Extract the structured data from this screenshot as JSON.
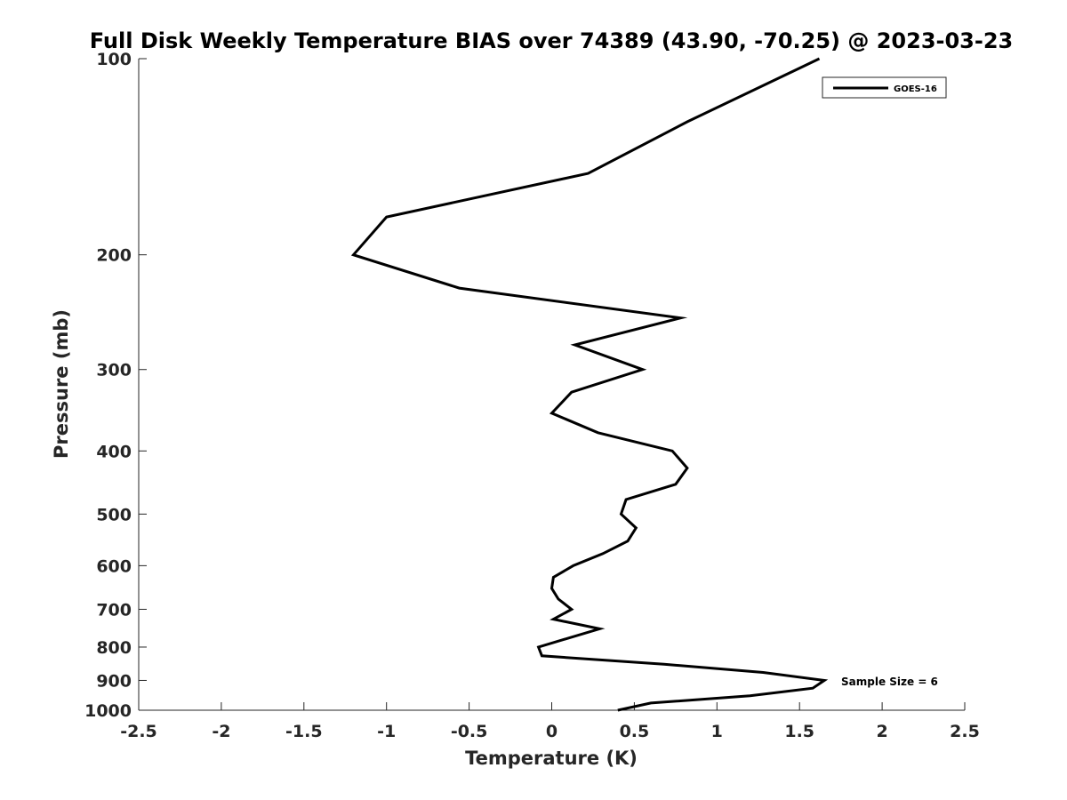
{
  "chart_data": {
    "type": "line",
    "title": "Full Disk Weekly Temperature BIAS over 74389 (43.90, -70.25) @ 2023-03-23",
    "xlabel": "Temperature (K)",
    "ylabel": "Pressure (mb)",
    "xlim": [
      -2.5,
      2.5
    ],
    "ylim": [
      100,
      1000
    ],
    "y_scale": "log",
    "y_reversed": true,
    "x_ticks": [
      -2.5,
      -2,
      -1.5,
      -1,
      -0.5,
      0,
      0.5,
      1,
      1.5,
      2,
      2.5
    ],
    "x_tick_labels": [
      "-2.5",
      "-2",
      "-1.5",
      "-1",
      "-0.5",
      "0",
      "0.5",
      "1",
      "1.5",
      "2",
      "2.5"
    ],
    "y_ticks": [
      100,
      200,
      300,
      400,
      500,
      600,
      700,
      800,
      900,
      1000
    ],
    "y_tick_labels": [
      "100",
      "200",
      "300",
      "400",
      "500",
      "600",
      "700",
      "800",
      "900",
      "1000"
    ],
    "grid": false,
    "legend_position": "top-right",
    "annotation": "Sample Size = 6",
    "series": [
      {
        "name": "GOES-16",
        "color": "#000000",
        "points": [
          {
            "x": 1.62,
            "y": 100
          },
          {
            "x": 0.82,
            "y": 125
          },
          {
            "x": 0.22,
            "y": 150
          },
          {
            "x": -1.0,
            "y": 175
          },
          {
            "x": -1.2,
            "y": 200
          },
          {
            "x": -0.56,
            "y": 225
          },
          {
            "x": 0.78,
            "y": 250
          },
          {
            "x": 0.14,
            "y": 275
          },
          {
            "x": 0.55,
            "y": 300
          },
          {
            "x": 0.12,
            "y": 325
          },
          {
            "x": 0.0,
            "y": 350
          },
          {
            "x": 0.28,
            "y": 375
          },
          {
            "x": 0.73,
            "y": 400
          },
          {
            "x": 0.82,
            "y": 425
          },
          {
            "x": 0.75,
            "y": 450
          },
          {
            "x": 0.45,
            "y": 475
          },
          {
            "x": 0.42,
            "y": 500
          },
          {
            "x": 0.51,
            "y": 525
          },
          {
            "x": 0.46,
            "y": 550
          },
          {
            "x": 0.31,
            "y": 575
          },
          {
            "x": 0.13,
            "y": 600
          },
          {
            "x": 0.01,
            "y": 625
          },
          {
            "x": 0.0,
            "y": 650
          },
          {
            "x": 0.04,
            "y": 675
          },
          {
            "x": 0.12,
            "y": 700
          },
          {
            "x": 0.01,
            "y": 725
          },
          {
            "x": 0.29,
            "y": 750
          },
          {
            "x": 0.1,
            "y": 775
          },
          {
            "x": -0.08,
            "y": 800
          },
          {
            "x": -0.06,
            "y": 825
          },
          {
            "x": 0.68,
            "y": 850
          },
          {
            "x": 1.28,
            "y": 875
          },
          {
            "x": 1.65,
            "y": 900
          },
          {
            "x": 1.58,
            "y": 925
          },
          {
            "x": 1.2,
            "y": 950
          },
          {
            "x": 0.6,
            "y": 975
          },
          {
            "x": 0.4,
            "y": 1000
          }
        ]
      }
    ]
  }
}
